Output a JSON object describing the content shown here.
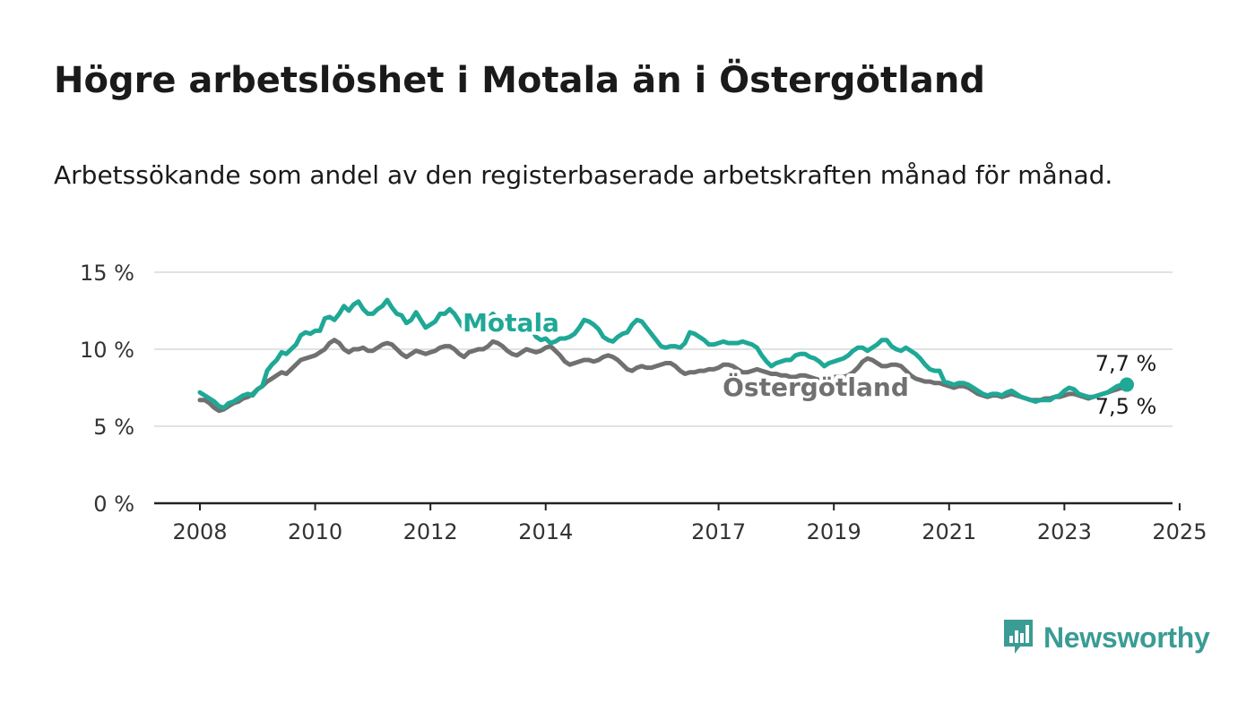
{
  "title": "Högre arbetslöshet i Motala än i Östergötland",
  "subtitle": "Arbetssökande som andel av den registerbaserade arbetskraften månad för månad.",
  "brand": {
    "name": "Newsworthy",
    "color": "#3a9c94",
    "icon": "newsworthy-logo-icon"
  },
  "chart_data": {
    "type": "line",
    "title": "Högre arbetslöshet i Motala än i Östergötland",
    "subtitle": "Arbetssökande som andel av den registerbaserade arbetskraften månad för månad.",
    "xlabel": "",
    "ylabel": "",
    "x_start": "2008-01",
    "x_end": "2025-02",
    "ylim": [
      0,
      15
    ],
    "y_ticks": [
      {
        "value": 0,
        "label": "0 %"
      },
      {
        "value": 5,
        "label": "5 %"
      },
      {
        "value": 10,
        "label": "10 %"
      },
      {
        "value": 15,
        "label": "15 %"
      }
    ],
    "x_ticks": [
      "2008",
      "2010",
      "2012",
      "2014",
      "2017",
      "2019",
      "2021",
      "2023",
      "2025"
    ],
    "grid": true,
    "series": [
      {
        "name": "Motala",
        "color": "#1fa896",
        "end_label": "7,7 %",
        "values": [
          7.2,
          7.0,
          6.8,
          6.6,
          6.3,
          6.2,
          6.5,
          6.6,
          6.8,
          7.0,
          7.1,
          7.0,
          7.4,
          7.6,
          8.6,
          9.0,
          9.3,
          9.8,
          9.7,
          10.0,
          10.3,
          10.9,
          11.1,
          11.0,
          11.2,
          11.2,
          12.0,
          12.1,
          11.9,
          12.3,
          12.8,
          12.5,
          12.9,
          13.1,
          12.6,
          12.3,
          12.3,
          12.6,
          12.8,
          13.2,
          12.7,
          12.3,
          12.2,
          11.7,
          11.9,
          12.4,
          11.9,
          11.4,
          11.6,
          11.8,
          12.3,
          12.3,
          12.6,
          12.3,
          11.8,
          11.3,
          11.8,
          11.8,
          11.7,
          11.6,
          12.0,
          12.3,
          12.0,
          11.6,
          11.4,
          11.2,
          11.3,
          11.5,
          11.7,
          11.3,
          10.8,
          10.6,
          10.7,
          10.4,
          10.5,
          10.7,
          10.7,
          10.8,
          11.0,
          11.4,
          11.9,
          11.8,
          11.6,
          11.3,
          10.8,
          10.6,
          10.5,
          10.8,
          11.0,
          11.1,
          11.6,
          11.9,
          11.8,
          11.4,
          11.0,
          10.6,
          10.2,
          10.1,
          10.2,
          10.2,
          10.1,
          10.4,
          11.1,
          11.0,
          10.8,
          10.6,
          10.3,
          10.3,
          10.4,
          10.5,
          10.4,
          10.4,
          10.4,
          10.5,
          10.4,
          10.3,
          10.1,
          9.6,
          9.2,
          8.9,
          9.1,
          9.2,
          9.3,
          9.3,
          9.6,
          9.7,
          9.7,
          9.5,
          9.4,
          9.2,
          8.9,
          9.1,
          9.2,
          9.3,
          9.4,
          9.6,
          9.9,
          10.1,
          10.1,
          9.9,
          10.1,
          10.3,
          10.6,
          10.6,
          10.2,
          10.0,
          9.9,
          10.1,
          9.9,
          9.7,
          9.4,
          9.0,
          8.7,
          8.6,
          8.6,
          7.9,
          7.8,
          7.7,
          7.8,
          7.8,
          7.7,
          7.5,
          7.3,
          7.1,
          7.0,
          7.1,
          7.1,
          7.0,
          7.2,
          7.3,
          7.1,
          6.9,
          6.8,
          6.7,
          6.6,
          6.7,
          6.7,
          6.7,
          6.9,
          7.0,
          7.3,
          7.5,
          7.4,
          7.1,
          7.0,
          6.9,
          6.9,
          7.0,
          7.1,
          7.2,
          7.4,
          7.6,
          7.7,
          7.7
        ]
      },
      {
        "name": "Östergötland",
        "color": "#707070",
        "end_label": "7,5 %",
        "values": [
          6.7,
          6.7,
          6.5,
          6.2,
          6.0,
          6.1,
          6.3,
          6.5,
          6.6,
          6.8,
          6.9,
          7.1,
          7.4,
          7.6,
          7.9,
          8.1,
          8.3,
          8.5,
          8.4,
          8.7,
          9.0,
          9.3,
          9.4,
          9.5,
          9.6,
          9.8,
          10.0,
          10.4,
          10.6,
          10.4,
          10.0,
          9.8,
          10.0,
          10.0,
          10.1,
          9.9,
          9.9,
          10.1,
          10.3,
          10.4,
          10.3,
          10.0,
          9.7,
          9.5,
          9.7,
          9.9,
          9.8,
          9.7,
          9.8,
          9.9,
          10.1,
          10.2,
          10.2,
          10.0,
          9.7,
          9.5,
          9.8,
          9.9,
          10.0,
          10.0,
          10.2,
          10.5,
          10.4,
          10.2,
          9.9,
          9.7,
          9.6,
          9.8,
          10.0,
          9.9,
          9.8,
          9.9,
          10.1,
          10.2,
          9.9,
          9.6,
          9.2,
          9.0,
          9.1,
          9.2,
          9.3,
          9.3,
          9.2,
          9.3,
          9.5,
          9.6,
          9.5,
          9.3,
          9.0,
          8.7,
          8.6,
          8.8,
          8.9,
          8.8,
          8.8,
          8.9,
          9.0,
          9.1,
          9.1,
          8.9,
          8.6,
          8.4,
          8.5,
          8.5,
          8.6,
          8.6,
          8.7,
          8.7,
          8.8,
          9.0,
          9.0,
          8.9,
          8.7,
          8.5,
          8.5,
          8.6,
          8.7,
          8.6,
          8.5,
          8.4,
          8.4,
          8.3,
          8.3,
          8.2,
          8.2,
          8.3,
          8.3,
          8.2,
          8.1,
          8.0,
          8.0,
          8.1,
          8.2,
          8.2,
          8.2,
          8.3,
          8.5,
          8.8,
          9.2,
          9.4,
          9.3,
          9.1,
          8.9,
          8.9,
          9.0,
          9.0,
          8.9,
          8.6,
          8.3,
          8.1,
          8.0,
          7.9,
          7.9,
          7.8,
          7.8,
          7.7,
          7.6,
          7.5,
          7.6,
          7.6,
          7.5,
          7.3,
          7.1,
          7.0,
          6.9,
          7.0,
          7.0,
          6.9,
          7.0,
          7.1,
          7.0,
          6.9,
          6.8,
          6.7,
          6.7,
          6.7,
          6.8,
          6.8,
          6.9,
          6.9,
          7.0,
          7.1,
          7.1,
          7.0,
          6.9,
          6.8,
          6.9,
          7.0,
          7.1,
          7.2,
          7.3,
          7.4,
          7.5,
          7.5
        ]
      }
    ],
    "series_labels": [
      {
        "series": "Motala",
        "text": "Motala",
        "color": "#1fa896"
      },
      {
        "series": "Östergötland",
        "text": "Östergötland",
        "color": "#707070"
      }
    ],
    "legend": "inline"
  }
}
